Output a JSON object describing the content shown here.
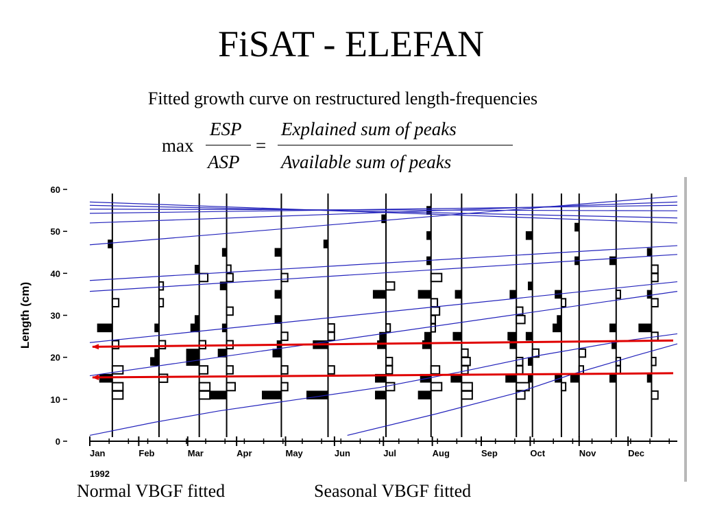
{
  "slide": {
    "title": "FiSAT - ELEFAN",
    "subtitle": "Fitted growth curve on restructured length-frequencies",
    "formula": {
      "operator": "max",
      "lhs_numerator": "ESP",
      "lhs_denominator": "ASP",
      "equals": "=",
      "rhs_numerator": "Explained sum of  peaks",
      "rhs_denominator": "Available sum of  peaks"
    },
    "bottom_labels": {
      "left": "Normal VBGF fitted",
      "right": "Seasonal VBGF fitted"
    }
  },
  "colors": {
    "growth_curves": "#2222bb",
    "arrows": "#e00000",
    "positive_bars": "#000000",
    "negative_bars": "#ffffff",
    "axis": "#000000"
  },
  "chart_data": {
    "type": "histogram",
    "title": "",
    "ylabel": "Length (cm)",
    "ylim": [
      0,
      60
    ],
    "yticks": [
      0,
      10,
      20,
      30,
      40,
      50,
      60
    ],
    "xlim": [
      0,
      365
    ],
    "xticks_months": [
      "Jan",
      "Feb",
      "Mar",
      "Apr",
      "May",
      "Jun",
      "Jul",
      "Aug",
      "Sep",
      "Oct",
      "Nov",
      "Dec"
    ],
    "year_label": "1992",
    "sample_days": [
      14,
      43,
      68,
      85,
      119,
      148,
      184,
      212,
      231,
      265,
      275,
      293,
      304,
      327,
      349
    ],
    "bins": [
      11,
      13,
      15,
      17,
      19,
      21,
      23,
      25,
      27,
      29,
      31,
      33,
      35,
      37,
      39,
      41,
      43,
      45,
      47,
      49,
      51,
      53,
      55
    ],
    "restructured_frequencies": [
      [
        -5,
        -5,
        6,
        -5,
        0,
        0,
        -3,
        0,
        7,
        0,
        0,
        -3,
        0,
        0,
        0,
        0,
        0,
        0,
        2,
        0,
        0,
        0,
        0
      ],
      [
        0,
        0,
        -4,
        0,
        4,
        2,
        -3,
        0,
        2,
        0,
        0,
        -2,
        0,
        -2,
        0,
        0,
        0,
        0,
        0,
        0,
        0,
        0,
        0
      ],
      [
        -5,
        -5,
        0,
        -4,
        6,
        6,
        -3,
        0,
        4,
        2,
        0,
        0,
        0,
        0,
        -4,
        2,
        0,
        0,
        0,
        0,
        0,
        0,
        0
      ],
      [
        8,
        -4,
        0,
        -3,
        0,
        4,
        -3,
        0,
        2,
        0,
        -3,
        0,
        0,
        3,
        -3,
        -2,
        0,
        2,
        0,
        0,
        0,
        0,
        0
      ],
      [
        9,
        -3,
        0,
        -3,
        0,
        4,
        2,
        -3,
        0,
        3,
        0,
        0,
        3,
        0,
        -3,
        0,
        0,
        3,
        0,
        0,
        0,
        0,
        0
      ],
      [
        10,
        0,
        0,
        -3,
        0,
        0,
        7,
        -3,
        -3,
        0,
        0,
        0,
        0,
        0,
        0,
        0,
        0,
        0,
        2,
        0,
        0,
        0,
        0
      ],
      [
        5,
        -4,
        5,
        -3,
        -3,
        0,
        4,
        3,
        -2,
        0,
        0,
        0,
        6,
        -4,
        0,
        0,
        0,
        0,
        0,
        0,
        0,
        2,
        0
      ],
      [
        6,
        -5,
        5,
        -4,
        0,
        0,
        4,
        3,
        -2,
        -2,
        -4,
        -3,
        6,
        0,
        -5,
        0,
        2,
        0,
        0,
        2,
        0,
        0,
        2
      ],
      [
        -5,
        -5,
        5,
        -3,
        -4,
        -3,
        0,
        4,
        0,
        0,
        0,
        0,
        3,
        0,
        0,
        0,
        0,
        0,
        0,
        0,
        0,
        0,
        0
      ],
      [
        -4,
        -6,
        5,
        -3,
        -3,
        0,
        3,
        4,
        0,
        -4,
        -3,
        0,
        3,
        0,
        0,
        0,
        0,
        0,
        0,
        0,
        0,
        0,
        0
      ],
      [
        0,
        0,
        2,
        0,
        2,
        -3,
        0,
        3,
        0,
        0,
        0,
        0,
        0,
        2,
        0,
        0,
        0,
        0,
        0,
        3,
        0,
        0,
        0
      ],
      [
        0,
        -2,
        3,
        0,
        0,
        0,
        0,
        0,
        4,
        2,
        0,
        -2,
        3,
        0,
        0,
        0,
        0,
        0,
        0,
        0,
        0,
        0,
        0
      ],
      [
        0,
        0,
        4,
        -2,
        0,
        -3,
        0,
        0,
        0,
        0,
        0,
        0,
        0,
        0,
        0,
        0,
        2,
        0,
        0,
        0,
        2,
        0,
        0
      ],
      [
        0,
        0,
        3,
        -2,
        -2,
        0,
        2,
        0,
        3,
        0,
        0,
        0,
        -2,
        0,
        0,
        0,
        3,
        0,
        0,
        0,
        0,
        0,
        0
      ],
      [
        -3,
        0,
        2,
        0,
        -2,
        0,
        0,
        -3,
        6,
        0,
        0,
        -3,
        2,
        0,
        -3,
        -3,
        0,
        2,
        0,
        0,
        0,
        0,
        0
      ]
    ],
    "series": [
      {
        "name": "",
        "points": [
          [
            0,
            46.8
          ],
          [
            365,
            58.4
          ]
        ]
      },
      {
        "name": "",
        "points": [
          [
            0,
            52.0
          ],
          [
            365,
            57.0
          ]
        ]
      },
      {
        "name": "",
        "points": [
          [
            0,
            54.3
          ],
          [
            365,
            56.2
          ]
        ]
      },
      {
        "name": "",
        "points": [
          [
            0,
            55.3
          ],
          [
            365,
            54.9
          ]
        ]
      },
      {
        "name": "",
        "points": [
          [
            0,
            56.2
          ],
          [
            365,
            53.2
          ]
        ]
      },
      {
        "name": "",
        "points": [
          [
            0,
            57.0
          ],
          [
            365,
            52.0
          ]
        ]
      },
      {
        "name": "",
        "points": [
          [
            0,
            38.3
          ],
          [
            365,
            46.6
          ]
        ]
      },
      {
        "name": "",
        "points": [
          [
            0,
            35.7
          ],
          [
            365,
            44.5
          ]
        ]
      },
      {
        "name": "",
        "points": [
          [
            0,
            23.5
          ],
          [
            365,
            38.0
          ]
        ]
      },
      {
        "name": "",
        "points": [
          [
            0,
            15.6
          ],
          [
            365,
            35.7
          ]
        ]
      },
      {
        "name": "",
        "points": [
          [
            0,
            1.4
          ],
          [
            40,
            4.5
          ],
          [
            80,
            7.2
          ],
          [
            130,
            10.0
          ],
          [
            180,
            12.8
          ],
          [
            230,
            16.5
          ],
          [
            280,
            20.5
          ],
          [
            330,
            23.8
          ],
          [
            365,
            25.6
          ]
        ]
      },
      {
        "name": "",
        "points": [
          [
            160,
            1.4
          ],
          [
            215,
            6.5
          ],
          [
            265,
            11.5
          ],
          [
            300,
            16.0
          ],
          [
            340,
            20.5
          ],
          [
            365,
            23.2
          ]
        ]
      }
    ],
    "annotations": [
      {
        "type": "arrow",
        "from": [
          365,
          24.0
        ],
        "to": [
          0,
          22.5
        ]
      },
      {
        "type": "arrow",
        "from": [
          365,
          16.2
        ],
        "to": [
          0,
          15.2
        ]
      }
    ]
  }
}
